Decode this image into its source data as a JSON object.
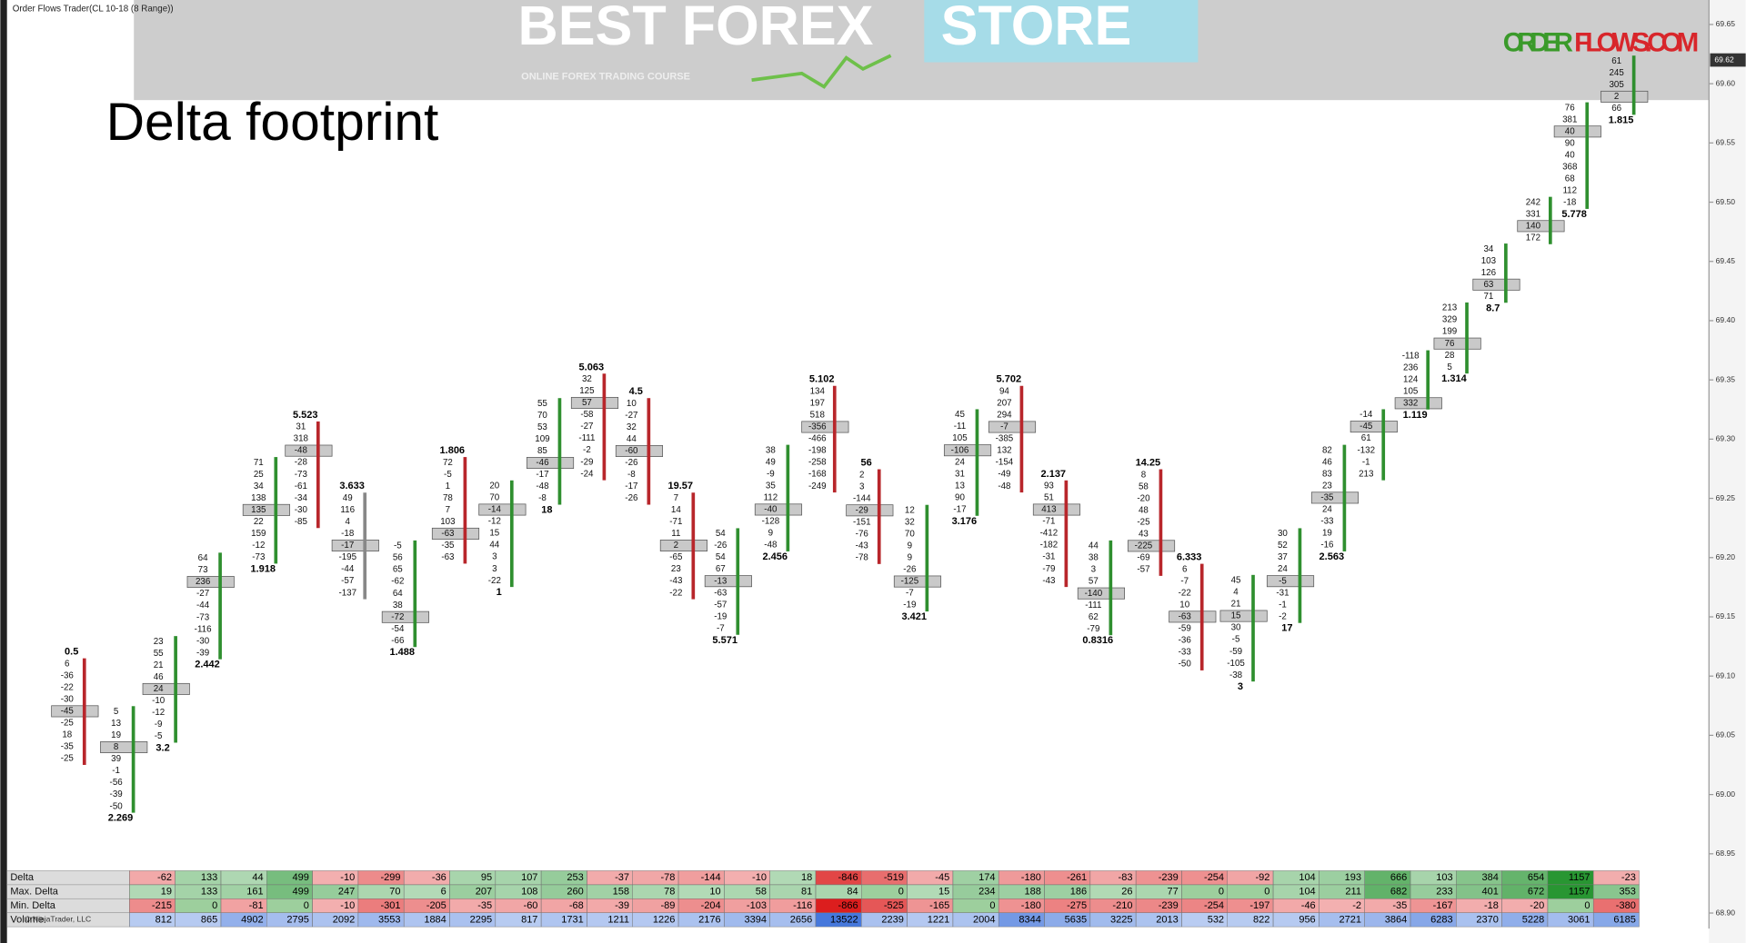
{
  "header": {
    "window_title": "Order Flows Trader(CL 10-18 (8 Range))",
    "logo_main": "BEST FOREX",
    "logo_accent": "STORE",
    "logo_sub": "ONLINE FOREX TRADING COURSE",
    "brand_left": "ORDER",
    "brand_right": "FLOWS.COM",
    "slide_title": "Delta footprint"
  },
  "price_axis": {
    "ticks": [
      69.65,
      {
        "value": 69.6,
        "label": "69.60"
      },
      69.55,
      {
        "value": 69.5,
        "label": "69.50"
      },
      69.45,
      {
        "value": 69.4,
        "label": "69.40"
      },
      69.35,
      {
        "value": 69.3,
        "label": "69.30"
      },
      69.25,
      {
        "value": 69.2,
        "label": "69.20"
      },
      69.15,
      {
        "value": 69.1,
        "label": "69.10"
      },
      69.05,
      {
        "value": 69,
        "label": "69.00"
      },
      68.95,
      {
        "value": 68.9,
        "label": "68.90"
      }
    ],
    "current": 69.62
  },
  "footprint": [
    {
      "cells": [
        6,
        -36,
        -22,
        -30,
        -45,
        -25,
        18,
        -35,
        -25
      ],
      "poc": 4,
      "label": 0.5,
      "color": "#b8262b"
    },
    {
      "cells": [
        5,
        13,
        19,
        8,
        39,
        -1,
        -56,
        -39,
        -50
      ],
      "poc": 3,
      "label": 2.269,
      "color": "#2f8f2f"
    },
    {
      "cells": [
        23,
        55,
        21,
        46,
        24,
        -10,
        -12,
        -9,
        -5
      ],
      "poc": 4,
      "label": 3.2,
      "color": "#2f8f2f"
    },
    {
      "cells": [
        64,
        73,
        236,
        -27,
        -44,
        -73,
        -116,
        -30,
        -39
      ],
      "poc": 2,
      "label": 2.442,
      "color": "#2f8f2f"
    },
    {
      "cells": [
        71,
        25,
        34,
        138,
        135,
        22,
        159,
        -12,
        -73
      ],
      "poc": 4,
      "label": 1.918,
      "color": "#2f8f2f"
    },
    {
      "cells": [
        31,
        318,
        -48,
        -28,
        -73,
        -61,
        -34,
        -30,
        -85
      ],
      "poc": 2,
      "label": 5.523,
      "color": "#b8262b"
    },
    {
      "cells": [
        49,
        116,
        4,
        -18,
        -17,
        -195,
        -44,
        -57,
        -137
      ],
      "poc": 4,
      "label": 3.633,
      "color": "#888888"
    },
    {
      "cells": [
        -5,
        56,
        65,
        -62,
        64,
        38,
        -72,
        -54,
        -66
      ],
      "poc": 6,
      "label": 1.488,
      "color": "#2f8f2f"
    },
    {
      "cells": [
        72,
        -5,
        1,
        78,
        7,
        103,
        -63,
        -35,
        -63
      ],
      "poc": 6,
      "label": 1.806,
      "color": "#b8262b"
    },
    {
      "cells": [
        20,
        70,
        -14,
        -12,
        15,
        44,
        3,
        3,
        -22
      ],
      "poc": 2,
      "label": 1,
      "color": "#2f8f2f"
    },
    {
      "cells": [
        55,
        70,
        53,
        109,
        85,
        -46,
        -17,
        -48,
        -8
      ],
      "poc": 5,
      "label": 18,
      "color": "#2f8f2f"
    },
    {
      "cells": [
        32,
        125,
        57,
        -58,
        -27,
        -111,
        -2,
        -29,
        -24
      ],
      "poc": 2,
      "label": 5.063,
      "color": "#b8262b"
    },
    {
      "cells": [
        10,
        -27,
        32,
        44,
        -60,
        -26,
        -8,
        -17,
        -26
      ],
      "poc": 4,
      "label": 4.5,
      "color": "#b8262b"
    },
    {
      "cells": [
        7,
        14,
        -71,
        11,
        2,
        -65,
        23,
        -43,
        -22
      ],
      "poc": 4,
      "label": 19.57,
      "color": "#b8262b"
    },
    {
      "cells": [
        54,
        -26,
        54,
        67,
        -13,
        -63,
        -57,
        -19,
        -7
      ],
      "poc": 4,
      "label": 5.571,
      "color": "#2f8f2f"
    },
    {
      "cells": [
        38,
        49,
        -9,
        35,
        112,
        -40,
        -128,
        9,
        -48
      ],
      "poc": 5,
      "label": 2.456,
      "color": "#2f8f2f"
    },
    {
      "cells": [
        134,
        197,
        518,
        -356,
        -466,
        -198,
        -258,
        -168,
        -249
      ],
      "poc": 3,
      "label": 5.102,
      "color": "#b8262b"
    },
    {
      "cells": [
        2,
        3,
        -144,
        -29,
        -151,
        -76,
        -43,
        -78
      ],
      "poc": 3,
      "label": 56,
      "color": "#b8262b"
    },
    {
      "cells": [
        12,
        32,
        70,
        9,
        9,
        -26,
        -125,
        -7,
        -19
      ],
      "poc": 6,
      "label": 3.421,
      "color": "#2f8f2f"
    },
    {
      "cells": [
        45,
        -11,
        105,
        -106,
        24,
        31,
        13,
        90,
        -17
      ],
      "poc": 3,
      "label": 3.176,
      "color": "#2f8f2f"
    },
    {
      "cells": [
        94,
        207,
        294,
        -7,
        -385,
        132,
        -154,
        -49,
        -48
      ],
      "poc": 3,
      "label": 5.702,
      "color": "#b8262b"
    },
    {
      "cells": [
        93,
        51,
        413,
        -71,
        -412,
        -182,
        -31,
        -79,
        -43
      ],
      "poc": 2,
      "label": 2.137,
      "color": "#b8262b"
    },
    {
      "cells": [
        44,
        38,
        3,
        57,
        -140,
        -111,
        62,
        -79
      ],
      "poc": 4,
      "label": 0.8316,
      "color": "#2f8f2f"
    },
    {
      "cells": [
        8,
        58,
        -20,
        48,
        -25,
        43,
        -225,
        -69,
        -57
      ],
      "poc": 6,
      "label": 14.25,
      "color": "#b8262b"
    },
    {
      "cells": [
        6,
        -7,
        -22,
        10,
        -63,
        -59,
        -36,
        -33,
        -50
      ],
      "poc": 4,
      "label": 6.333,
      "color": "#b8262b"
    },
    {
      "cells": [
        45,
        4,
        21,
        15,
        30,
        -5,
        -59,
        -105,
        -38
      ],
      "poc": 3,
      "label": 3,
      "color": "#2f8f2f"
    },
    {
      "cells": [
        30,
        52,
        37,
        24,
        -5,
        -31,
        -1,
        -2
      ],
      "poc": 4,
      "label": 17,
      "color": "#2f8f2f"
    },
    {
      "cells": [
        82,
        46,
        83,
        23,
        -35,
        24,
        -33,
        19,
        -16
      ],
      "poc": 4,
      "label": 2.563,
      "color": "#2f8f2f"
    },
    {
      "cells": [
        -14,
        -45,
        61,
        -132,
        -1,
        213
      ],
      "poc": 1,
      "color": "#2f8f2f"
    },
    {
      "cells": [
        -118,
        236,
        124,
        105,
        332
      ],
      "poc": 4,
      "label": 1.119,
      "color": "#2f8f2f"
    },
    {
      "cells": [
        213,
        329,
        199,
        76,
        28,
        5
      ],
      "poc": 3,
      "label": 1.314,
      "color": "#2f8f2f"
    },
    {
      "cells": [
        34,
        103,
        126,
        63,
        71
      ],
      "poc": 3,
      "label": 8.7,
      "color": "#2f8f2f"
    },
    {
      "cells": [
        242,
        331,
        140,
        172
      ],
      "poc": 2,
      "color": "#2f8f2f"
    },
    {
      "cells": [
        76,
        381,
        40,
        90,
        40,
        368,
        68,
        112,
        -18
      ],
      "poc": 2,
      "label": 5.778,
      "color": "#2f8f2f"
    },
    {
      "cells": [
        61,
        245,
        305,
        2,
        66
      ],
      "poc": 3,
      "label": 1.815,
      "color": "#2f8f2f"
    }
  ],
  "summary": {
    "rows": [
      {
        "name": "Delta",
        "values": [
          -62,
          133,
          44,
          499,
          -10,
          -299,
          -36,
          95,
          107,
          253,
          -37,
          -78,
          -144,
          -10,
          18,
          -846,
          -519,
          -45,
          174,
          -180,
          -261,
          -83,
          -239,
          -254,
          -92,
          104,
          193,
          666,
          103,
          384,
          654,
          1157,
          -23
        ]
      },
      {
        "name": "Max. Delta",
        "values": [
          19,
          133,
          161,
          499,
          247,
          70,
          6,
          207,
          108,
          260,
          158,
          78,
          10,
          58,
          81,
          84,
          0,
          15,
          234,
          188,
          186,
          26,
          77,
          0,
          0,
          104,
          211,
          682,
          233,
          401,
          672,
          1157,
          353
        ]
      },
      {
        "name": "Min. Delta",
        "values": [
          -215,
          0,
          -81,
          0,
          -10,
          -301,
          -205,
          -35,
          -60,
          -68,
          -39,
          -89,
          -204,
          -103,
          -116,
          -866,
          -525,
          -165,
          0,
          -180,
          -275,
          -210,
          -239,
          -254,
          -197,
          -46,
          -2,
          -35,
          -167,
          -18,
          -20,
          0,
          -380
        ]
      },
      {
        "name": "Volume",
        "values": [
          812,
          865,
          4902,
          2795,
          2092,
          3553,
          1884,
          2295,
          817,
          1731,
          1211,
          1226,
          2176,
          3394,
          2656,
          13522,
          2239,
          1221,
          2004,
          8344,
          5635,
          3225,
          2013,
          532,
          822,
          956,
          2721,
          3864,
          6283,
          2370,
          5228,
          3061,
          6185
        ]
      }
    ],
    "copyright": "© NinjaTrader, LLC"
  }
}
